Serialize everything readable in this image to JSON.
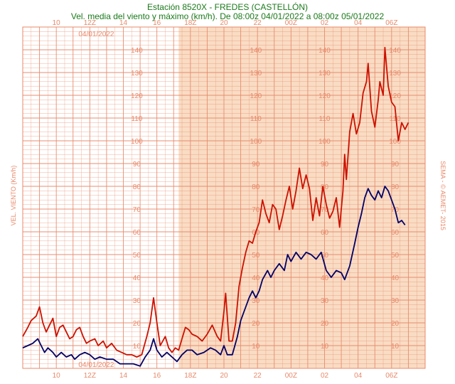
{
  "chart_data": {
    "type": "line",
    "title": "Estación 8520X - FREDES (CASTELLÓN)",
    "subtitle": "Vel. media del viento y máximo (km/h). De 08:00z 04/01/2022 a 08:00z 05/01/2022",
    "ylabel": "VEL. VIENTO (Km/h)",
    "credit": "SEMA - © AEMET- 2015",
    "ylim": [
      0,
      150
    ],
    "xlim_hours": [
      0,
      24
    ],
    "yticks": [
      10,
      20,
      30,
      40,
      50,
      60,
      70,
      80,
      90,
      100,
      110,
      120,
      130,
      140
    ],
    "xticks_top": [
      {
        "h": 2,
        "label": "10"
      },
      {
        "h": 4,
        "label": "12Z"
      },
      {
        "h": 6,
        "label": "14"
      },
      {
        "h": 8,
        "label": "16"
      },
      {
        "h": 10,
        "label": "18Z"
      },
      {
        "h": 12,
        "label": "20"
      },
      {
        "h": 14,
        "label": "22"
      },
      {
        "h": 16,
        "label": "00Z"
      },
      {
        "h": 18,
        "label": "02"
      },
      {
        "h": 20,
        "label": "04"
      },
      {
        "h": 22,
        "label": "06Z"
      }
    ],
    "xticks_bottom": [
      {
        "h": 2,
        "label": "10"
      },
      {
        "h": 4,
        "label": "12Z"
      },
      {
        "h": 6,
        "label": "14"
      },
      {
        "h": 8,
        "label": "16"
      },
      {
        "h": 10,
        "label": "18Z"
      },
      {
        "h": 12,
        "label": "20"
      },
      {
        "h": 14,
        "label": "22"
      },
      {
        "h": 16,
        "label": "00Z"
      },
      {
        "h": 18,
        "label": "02"
      },
      {
        "h": 20,
        "label": "04"
      },
      {
        "h": 22,
        "label": "06Z"
      }
    ],
    "date_labels": [
      {
        "h": 4.3,
        "pos": "top",
        "label": "04/01/2022"
      },
      {
        "h": 4.3,
        "pos": "bottom",
        "label": "04/01/2022"
      }
    ],
    "night_band": {
      "from": 9.3,
      "to": 24
    },
    "colors": {
      "max": "#cc1100",
      "mean": "#000066",
      "grid": "#e8896a",
      "night": "#f9dcc4"
    },
    "series": [
      {
        "key": "max",
        "points": [
          [
            0,
            14
          ],
          [
            0.3,
            18
          ],
          [
            0.5,
            21
          ],
          [
            0.8,
            23
          ],
          [
            1.0,
            27
          ],
          [
            1.2,
            20
          ],
          [
            1.4,
            16
          ],
          [
            1.6,
            19
          ],
          [
            1.8,
            22
          ],
          [
            2.0,
            14
          ],
          [
            2.2,
            18
          ],
          [
            2.4,
            19
          ],
          [
            2.6,
            16
          ],
          [
            2.8,
            13
          ],
          [
            3.0,
            14
          ],
          [
            3.2,
            17
          ],
          [
            3.4,
            18
          ],
          [
            3.6,
            14
          ],
          [
            3.8,
            11
          ],
          [
            4.0,
            12
          ],
          [
            4.3,
            13
          ],
          [
            4.5,
            10
          ],
          [
            4.8,
            12
          ],
          [
            5.0,
            9
          ],
          [
            5.3,
            11
          ],
          [
            5.6,
            8
          ],
          [
            5.9,
            7
          ],
          [
            6.2,
            6
          ],
          [
            6.5,
            6
          ],
          [
            6.8,
            5
          ],
          [
            7.1,
            6
          ],
          [
            7.4,
            14
          ],
          [
            7.6,
            20
          ],
          [
            7.8,
            31
          ],
          [
            8.0,
            20
          ],
          [
            8.2,
            10
          ],
          [
            8.5,
            14
          ],
          [
            8.7,
            9
          ],
          [
            8.9,
            7
          ],
          [
            9.1,
            9
          ],
          [
            9.3,
            8
          ],
          [
            9.5,
            13
          ],
          [
            9.7,
            18
          ],
          [
            9.9,
            17
          ],
          [
            10.1,
            15
          ],
          [
            10.4,
            14
          ],
          [
            10.7,
            12
          ],
          [
            11.0,
            15
          ],
          [
            11.3,
            19
          ],
          [
            11.6,
            14
          ],
          [
            11.8,
            12
          ],
          [
            12.0,
            25
          ],
          [
            12.1,
            33
          ],
          [
            12.3,
            12
          ],
          [
            12.5,
            12
          ],
          [
            12.7,
            20
          ],
          [
            12.9,
            36
          ],
          [
            13.1,
            44
          ],
          [
            13.3,
            51
          ],
          [
            13.5,
            56
          ],
          [
            13.7,
            55
          ],
          [
            13.9,
            60
          ],
          [
            14.1,
            64
          ],
          [
            14.3,
            74
          ],
          [
            14.5,
            68
          ],
          [
            14.7,
            64
          ],
          [
            14.9,
            72
          ],
          [
            15.1,
            70
          ],
          [
            15.3,
            61
          ],
          [
            15.5,
            67
          ],
          [
            15.7,
            74
          ],
          [
            15.9,
            80
          ],
          [
            16.1,
            70
          ],
          [
            16.3,
            78
          ],
          [
            16.5,
            88
          ],
          [
            16.7,
            79
          ],
          [
            16.9,
            85
          ],
          [
            17.1,
            79
          ],
          [
            17.3,
            65
          ],
          [
            17.5,
            75
          ],
          [
            17.7,
            67
          ],
          [
            17.9,
            80
          ],
          [
            18.1,
            72
          ],
          [
            18.3,
            66
          ],
          [
            18.5,
            69
          ],
          [
            18.7,
            75
          ],
          [
            18.9,
            62
          ],
          [
            19.1,
            78
          ],
          [
            19.2,
            94
          ],
          [
            19.3,
            83
          ],
          [
            19.5,
            104
          ],
          [
            19.7,
            112
          ],
          [
            19.9,
            103
          ],
          [
            20.1,
            108
          ],
          [
            20.3,
            121
          ],
          [
            20.5,
            126
          ],
          [
            20.6,
            134
          ],
          [
            20.8,
            113
          ],
          [
            21.0,
            106
          ],
          [
            21.2,
            118
          ],
          [
            21.3,
            126
          ],
          [
            21.5,
            120
          ],
          [
            21.6,
            141
          ],
          [
            21.8,
            124
          ],
          [
            22.0,
            117
          ],
          [
            22.2,
            115
          ],
          [
            22.4,
            100
          ],
          [
            22.6,
            108
          ],
          [
            22.8,
            105
          ],
          [
            23.0,
            108
          ]
        ]
      },
      {
        "key": "mean",
        "points": [
          [
            0,
            9
          ],
          [
            0.3,
            10
          ],
          [
            0.6,
            11
          ],
          [
            0.9,
            13
          ],
          [
            1.1,
            10
          ],
          [
            1.3,
            7
          ],
          [
            1.5,
            9
          ],
          [
            1.8,
            7
          ],
          [
            2.0,
            5
          ],
          [
            2.3,
            7
          ],
          [
            2.6,
            5
          ],
          [
            2.9,
            6
          ],
          [
            3.1,
            4
          ],
          [
            3.4,
            6
          ],
          [
            3.7,
            7
          ],
          [
            4.0,
            6
          ],
          [
            4.3,
            4
          ],
          [
            4.6,
            5
          ],
          [
            5.0,
            4
          ],
          [
            5.4,
            4
          ],
          [
            5.8,
            2
          ],
          [
            6.2,
            2
          ],
          [
            6.6,
            2
          ],
          [
            7.0,
            1
          ],
          [
            7.3,
            5
          ],
          [
            7.6,
            8
          ],
          [
            7.8,
            13
          ],
          [
            8.0,
            8
          ],
          [
            8.3,
            5
          ],
          [
            8.6,
            7
          ],
          [
            8.9,
            5
          ],
          [
            9.2,
            3
          ],
          [
            9.5,
            6
          ],
          [
            9.8,
            8
          ],
          [
            10.1,
            8
          ],
          [
            10.4,
            6
          ],
          [
            10.8,
            7
          ],
          [
            11.2,
            9
          ],
          [
            11.5,
            8
          ],
          [
            11.8,
            6
          ],
          [
            12.0,
            10
          ],
          [
            12.2,
            6
          ],
          [
            12.5,
            6
          ],
          [
            12.8,
            14
          ],
          [
            13.0,
            21
          ],
          [
            13.2,
            25
          ],
          [
            13.5,
            31
          ],
          [
            13.7,
            34
          ],
          [
            13.9,
            31
          ],
          [
            14.1,
            34
          ],
          [
            14.3,
            39
          ],
          [
            14.6,
            43
          ],
          [
            14.8,
            40
          ],
          [
            15.0,
            43
          ],
          [
            15.3,
            46
          ],
          [
            15.6,
            43
          ],
          [
            15.8,
            50
          ],
          [
            16.0,
            47
          ],
          [
            16.3,
            51
          ],
          [
            16.6,
            48
          ],
          [
            16.9,
            51
          ],
          [
            17.2,
            50
          ],
          [
            17.5,
            48
          ],
          [
            17.8,
            51
          ],
          [
            18.1,
            43
          ],
          [
            18.4,
            40
          ],
          [
            18.7,
            43
          ],
          [
            19.0,
            42
          ],
          [
            19.2,
            39
          ],
          [
            19.5,
            45
          ],
          [
            19.8,
            55
          ],
          [
            20.0,
            62
          ],
          [
            20.2,
            68
          ],
          [
            20.4,
            75
          ],
          [
            20.6,
            79
          ],
          [
            20.8,
            76
          ],
          [
            21.0,
            74
          ],
          [
            21.2,
            78
          ],
          [
            21.4,
            75
          ],
          [
            21.6,
            80
          ],
          [
            21.8,
            78
          ],
          [
            22.0,
            74
          ],
          [
            22.2,
            70
          ],
          [
            22.4,
            64
          ],
          [
            22.6,
            65
          ],
          [
            22.8,
            63
          ]
        ]
      }
    ]
  }
}
